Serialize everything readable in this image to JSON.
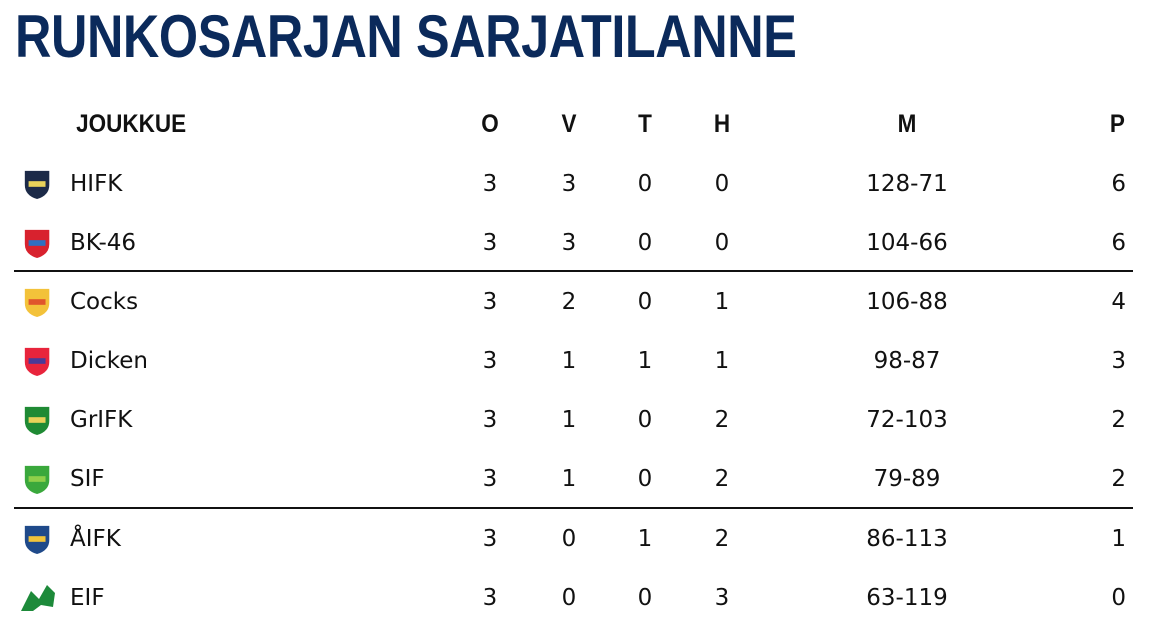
{
  "title": "RUNKOSARJAN SARJATILANNE",
  "headers": {
    "team": "JOUKKUE",
    "o": "O",
    "v": "V",
    "t": "T",
    "h": "H",
    "m": "M",
    "p": "P"
  },
  "rows": [
    {
      "team": "HIFK",
      "o": "3",
      "v": "3",
      "t": "0",
      "h": "0",
      "m": "128-71",
      "p": "6",
      "logo": "hifk-logo",
      "colors": [
        "#1c2a48",
        "#e8d25a"
      ]
    },
    {
      "team": "BK-46",
      "o": "3",
      "v": "3",
      "t": "0",
      "h": "0",
      "m": "104-66",
      "p": "6",
      "logo": "bk46-logo",
      "colors": [
        "#d8222e",
        "#2f6fc0"
      ]
    },
    {
      "team": "Cocks",
      "o": "3",
      "v": "2",
      "t": "0",
      "h": "1",
      "m": "106-88",
      "p": "4",
      "logo": "cocks-logo",
      "colors": [
        "#f3c23a",
        "#e0552c"
      ]
    },
    {
      "team": "Dicken",
      "o": "3",
      "v": "1",
      "t": "1",
      "h": "1",
      "m": "98-87",
      "p": "3",
      "logo": "dicken-logo",
      "colors": [
        "#e8243c",
        "#4a3a98"
      ]
    },
    {
      "team": "GrIFK",
      "o": "3",
      "v": "1",
      "t": "0",
      "h": "2",
      "m": "72-103",
      "p": "2",
      "logo": "grifk-logo",
      "colors": [
        "#1f8a34",
        "#e8d25a"
      ]
    },
    {
      "team": "SIF",
      "o": "3",
      "v": "1",
      "t": "0",
      "h": "2",
      "m": "79-89",
      "p": "2",
      "logo": "sif-logo",
      "colors": [
        "#3aa83c",
        "#8fd04a"
      ]
    },
    {
      "team": "ÅIFK",
      "o": "3",
      "v": "0",
      "t": "1",
      "h": "2",
      "m": "86-113",
      "p": "1",
      "logo": "aifk-logo",
      "colors": [
        "#1f4a8a",
        "#f1c43a"
      ]
    },
    {
      "team": "EIF",
      "o": "3",
      "v": "0",
      "t": "0",
      "h": "3",
      "m": "63-119",
      "p": "0",
      "logo": "eif-logo",
      "colors": [
        "#1d8a3a",
        "#1d8a3a"
      ]
    }
  ]
}
